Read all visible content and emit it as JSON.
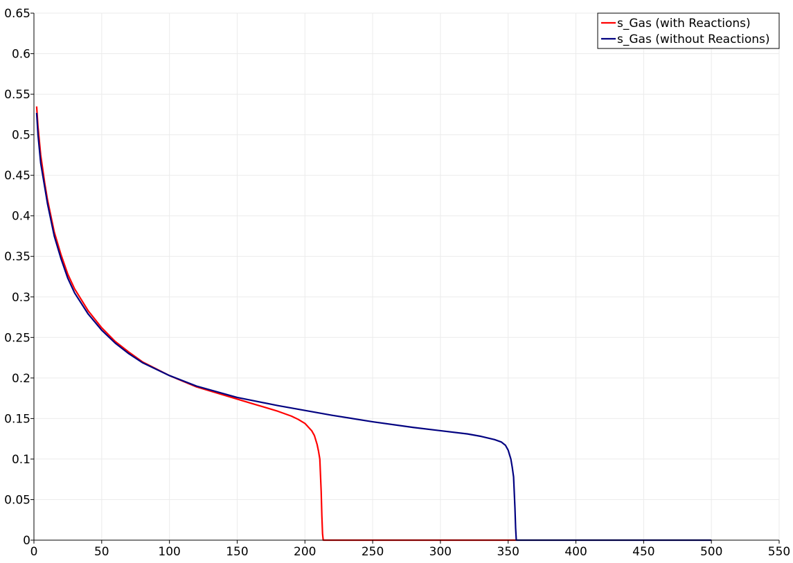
{
  "chart_data": {
    "type": "line",
    "title": "",
    "xlabel": "",
    "ylabel": "",
    "xlim": [
      0,
      550
    ],
    "ylim": [
      0,
      0.65
    ],
    "x_ticks": [
      0,
      50,
      100,
      150,
      200,
      250,
      300,
      350,
      400,
      450,
      500,
      550
    ],
    "y_ticks": [
      0,
      0.05,
      0.1,
      0.15,
      0.2,
      0.25,
      0.3,
      0.35,
      0.4,
      0.45,
      0.5,
      0.55,
      0.6,
      0.65
    ],
    "x_tick_labels": [
      "0",
      "50",
      "100",
      "150",
      "200",
      "250",
      "300",
      "350",
      "400",
      "450",
      "500",
      "550"
    ],
    "y_tick_labels": [
      "0",
      "0.05",
      "0.1",
      "0.15",
      "0.2",
      "0.25",
      "0.3",
      "0.35",
      "0.4",
      "0.45",
      "0.5",
      "0.55",
      "0.6",
      "0.65"
    ],
    "grid": true,
    "legend_position": "top-right",
    "series": [
      {
        "name": "s_Gas (with Reactions)",
        "color": "#ff0000",
        "x": [
          2,
          3,
          5,
          8,
          10,
          15,
          20,
          25,
          30,
          40,
          50,
          60,
          70,
          80,
          100,
          120,
          140,
          150,
          160,
          170,
          180,
          190,
          195,
          200,
          205,
          207,
          209,
          210,
          211,
          212,
          212.5,
          213,
          213.5,
          214,
          250,
          300,
          356
        ],
        "y": [
          0.535,
          0.51,
          0.475,
          0.44,
          0.42,
          0.38,
          0.352,
          0.328,
          0.31,
          0.283,
          0.262,
          0.245,
          0.232,
          0.22,
          0.203,
          0.189,
          0.179,
          0.174,
          0.169,
          0.164,
          0.159,
          0.153,
          0.149,
          0.144,
          0.135,
          0.129,
          0.118,
          0.11,
          0.1,
          0.06,
          0.03,
          0.008,
          0.0,
          0.0,
          0.0,
          0.0,
          0.0
        ]
      },
      {
        "name": "s_Gas (without Reactions)",
        "color": "#000080",
        "x": [
          2,
          3,
          5,
          8,
          10,
          15,
          20,
          25,
          30,
          40,
          50,
          60,
          70,
          80,
          100,
          120,
          150,
          180,
          200,
          220,
          250,
          280,
          300,
          320,
          330,
          340,
          345,
          348,
          350,
          352,
          353,
          354,
          355,
          355.5,
          356,
          360,
          400,
          450,
          500
        ],
        "y": [
          0.527,
          0.5,
          0.465,
          0.435,
          0.415,
          0.375,
          0.347,
          0.323,
          0.305,
          0.279,
          0.259,
          0.243,
          0.23,
          0.219,
          0.203,
          0.19,
          0.176,
          0.166,
          0.16,
          0.154,
          0.146,
          0.139,
          0.135,
          0.131,
          0.128,
          0.124,
          0.121,
          0.117,
          0.111,
          0.1,
          0.09,
          0.078,
          0.04,
          0.015,
          0.0,
          0.0,
          0.0,
          0.0,
          0.0
        ]
      }
    ]
  }
}
